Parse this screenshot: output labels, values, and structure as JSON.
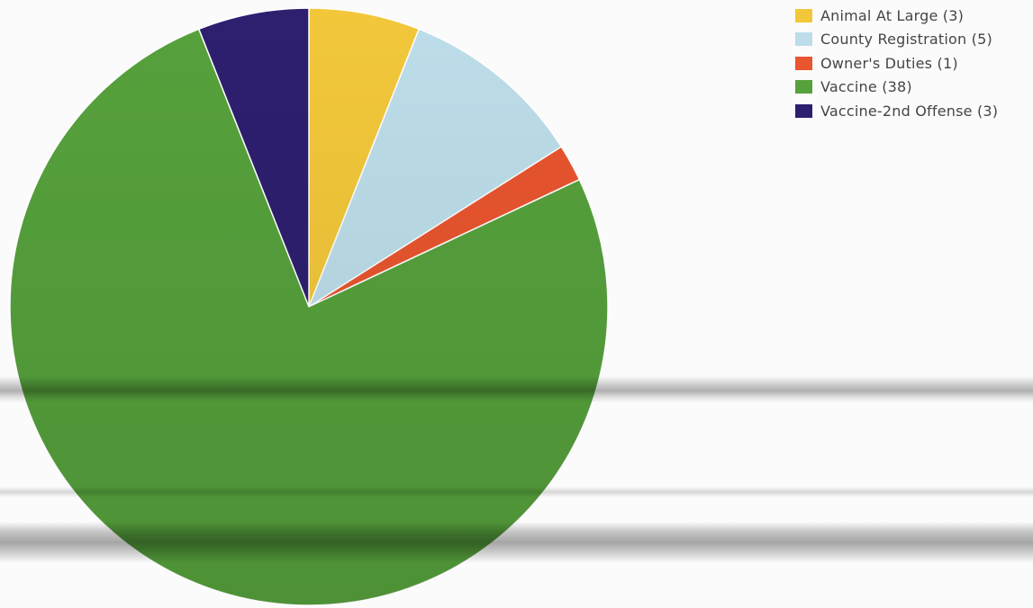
{
  "chart_data": {
    "type": "pie",
    "title": "",
    "start_angle_deg": 0,
    "direction": "clockwise",
    "legend_position": "top-right",
    "slice_border_color": "#ffffff",
    "slices": [
      {
        "label": "Animal At Large (3)",
        "name": "Animal At Large",
        "value": 3,
        "color": "#f2c73a"
      },
      {
        "label": "County Registration (5)",
        "name": "County Registration",
        "value": 5,
        "color": "#bcdde9"
      },
      {
        "label": "Owner's Duties (1)",
        "name": "Owner's Duties",
        "value": 1,
        "color": "#e8552e"
      },
      {
        "label": "Vaccine (38)",
        "name": "Vaccine",
        "value": 38,
        "color": "#56a13c"
      },
      {
        "label": "Vaccine-2nd Offense (3)",
        "name": "Vaccine-2nd Offense",
        "value": 3,
        "color": "#2e1f6f"
      }
    ]
  }
}
